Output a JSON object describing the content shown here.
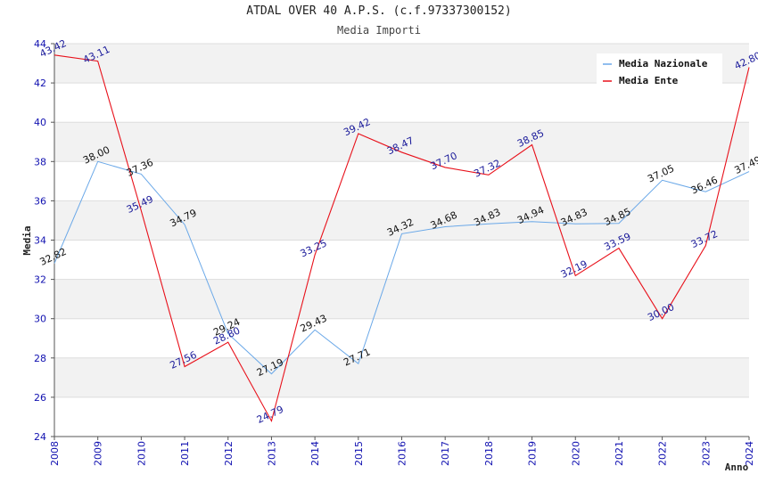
{
  "chart_data": {
    "type": "line",
    "title": "ATDAL OVER 40 A.P.S. (c.f.97337300152)",
    "subtitle": "Media Importi",
    "xlabel": "Anno",
    "ylabel": "Media",
    "ylim": [
      24,
      44
    ],
    "yticks": [
      24,
      26,
      28,
      30,
      32,
      34,
      36,
      38,
      40,
      42,
      44
    ],
    "x": [
      "2008",
      "2009",
      "2010",
      "2011",
      "2012",
      "2013",
      "2014",
      "2015",
      "2016",
      "2017",
      "2018",
      "2019",
      "2020",
      "2021",
      "2022",
      "2023",
      "2024"
    ],
    "grid": true,
    "legend_position": "top-right",
    "series": [
      {
        "name": "Media Nazionale",
        "color": "#6aa8e8",
        "values": [
          32.82,
          38.0,
          37.36,
          34.79,
          29.24,
          27.19,
          29.43,
          27.71,
          34.32,
          34.68,
          34.83,
          34.94,
          34.83,
          34.85,
          37.05,
          36.46,
          37.49
        ],
        "labels": [
          "32.82",
          "38.00",
          "37.36",
          "34.79",
          "29.24",
          "27.19",
          "29.43",
          "27.71",
          "34.32",
          "34.68",
          "34.83",
          "34.94",
          "34.83",
          "34.85",
          "37.05",
          "36.46",
          "37.49"
        ]
      },
      {
        "name": "Media Ente",
        "color": "#e8101a",
        "values": [
          43.42,
          43.11,
          35.49,
          27.56,
          28.8,
          24.79,
          33.25,
          39.42,
          38.47,
          37.7,
          37.32,
          38.85,
          32.19,
          33.59,
          30.0,
          33.72,
          42.8
        ],
        "labels": [
          "43.42",
          "43.11",
          "35.49",
          "27.56",
          "28.80",
          "24.79",
          "33.25",
          "39.42",
          "38.47",
          "37.70",
          "37.32",
          "38.85",
          "32.19",
          "33.59",
          "30.00",
          "33.72",
          "42.80"
        ]
      }
    ]
  }
}
